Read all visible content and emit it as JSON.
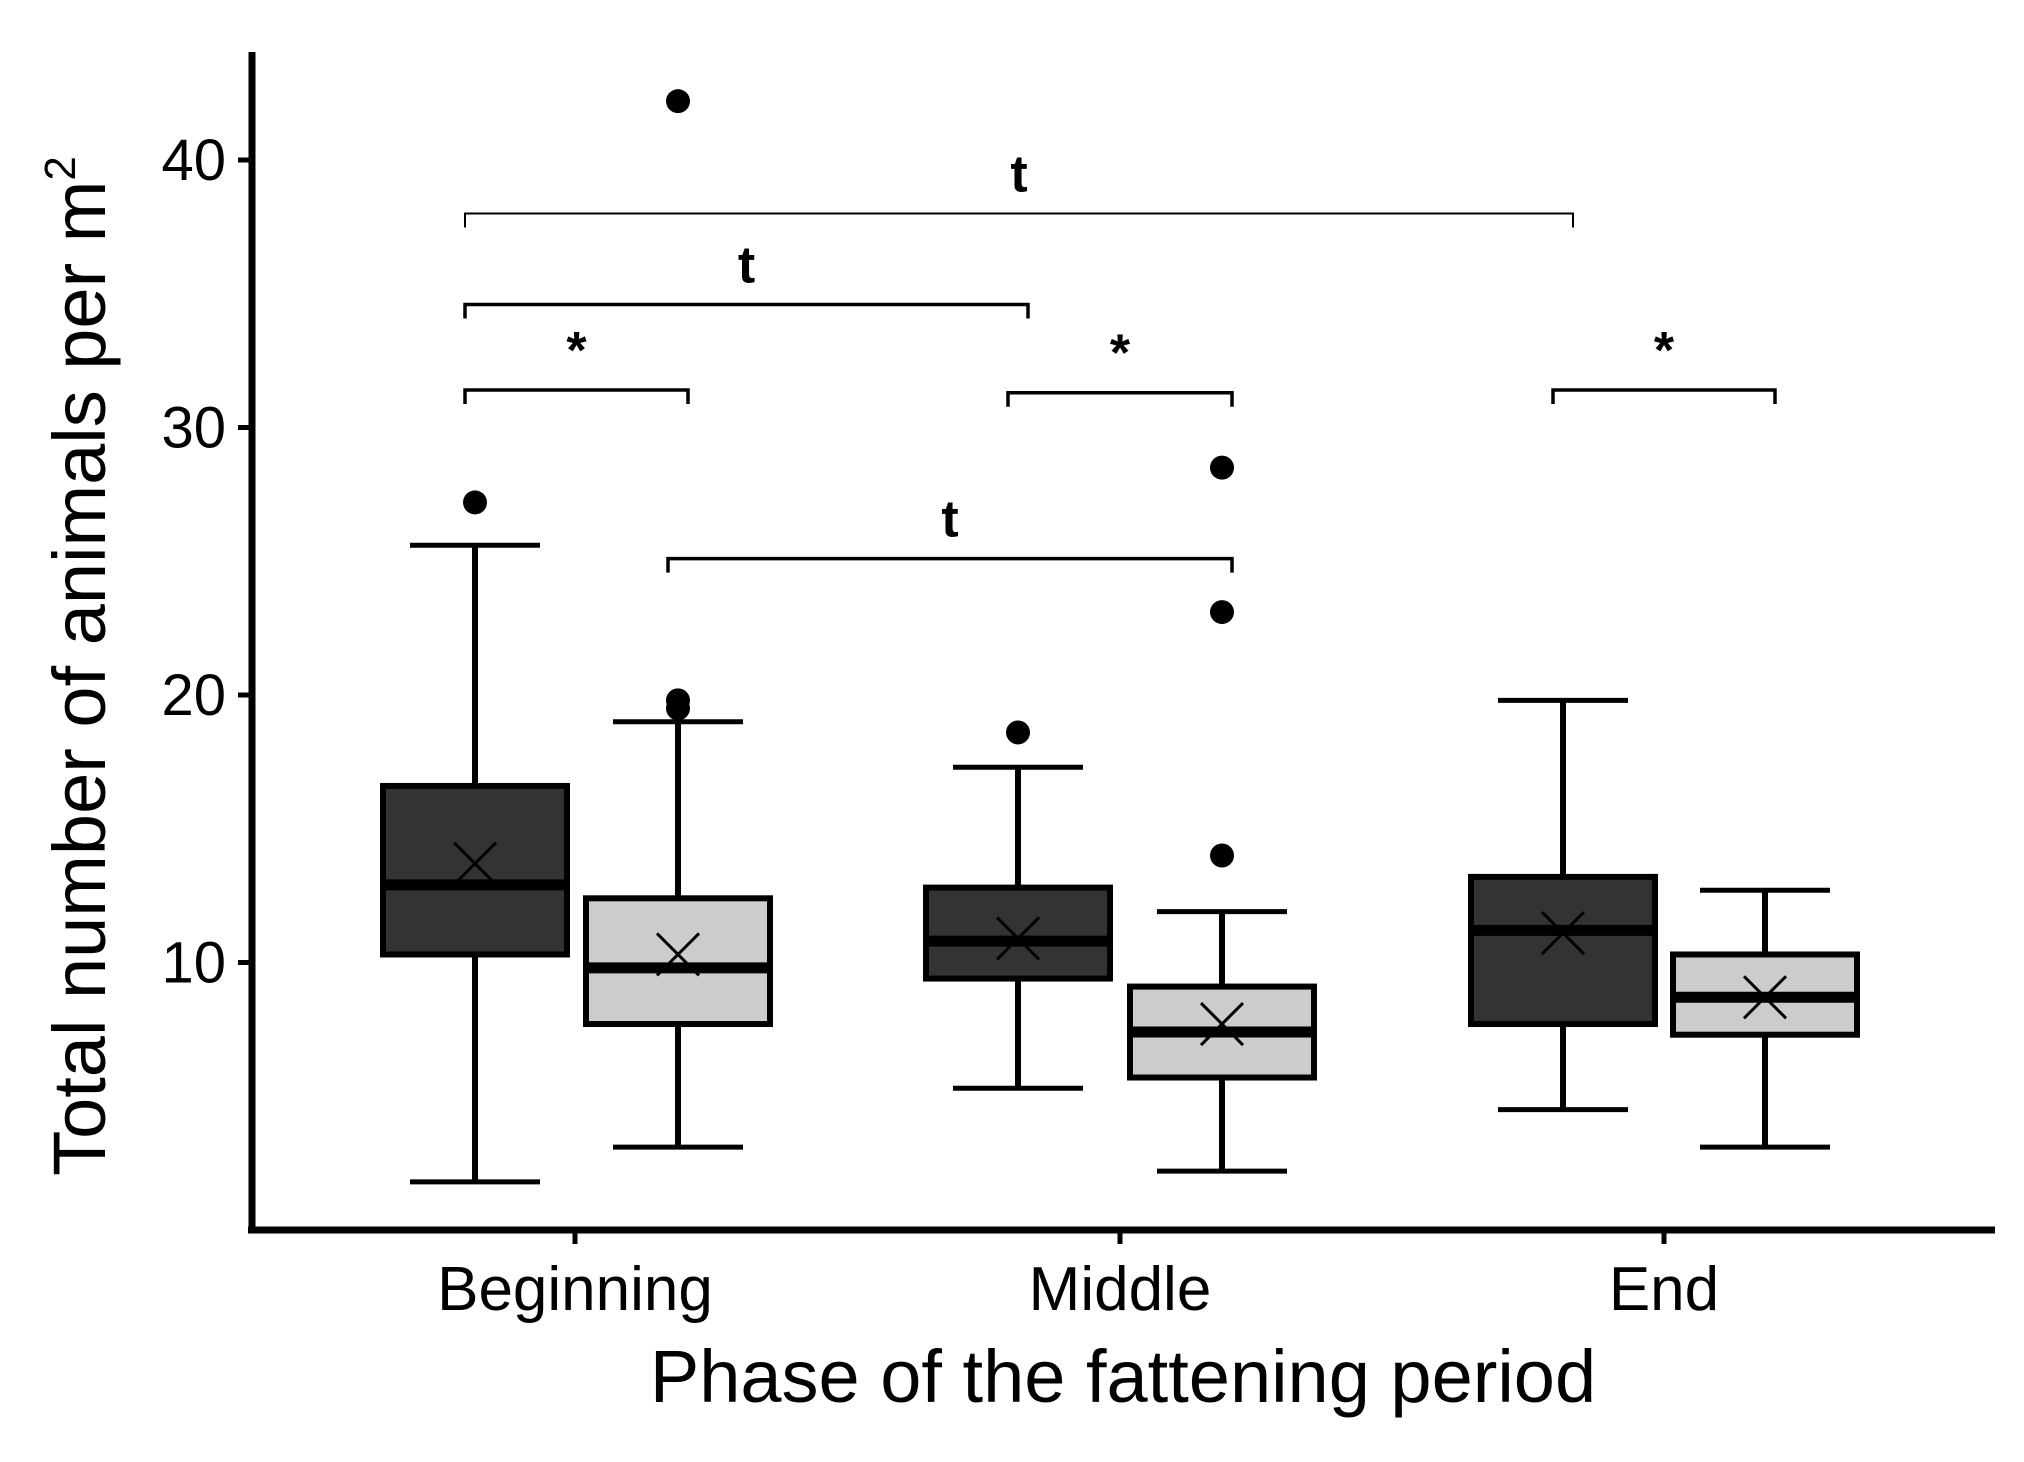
{
  "chart_data": {
    "type": "boxplot",
    "title": "",
    "xlabel": "Phase of the fattening period",
    "ylabel_main": "Total number of animals per m",
    "ylabel_superscript": "2",
    "ylim": [
      0,
      44
    ],
    "yticks": [
      10,
      20,
      30,
      40
    ],
    "categories": [
      "Beginning",
      "Middle",
      "End"
    ],
    "colors": {
      "dark": "#333333",
      "light": "#cccccc",
      "line": "#000000"
    },
    "groups": [
      {
        "category": "Beginning",
        "shade": "dark",
        "whisker_low": 1.8,
        "q1": 10.3,
        "median": 12.9,
        "q3": 16.6,
        "whisker_high": 25.6,
        "mean": 13.7,
        "outliers": [
          27.2
        ]
      },
      {
        "category": "Beginning",
        "shade": "light",
        "whisker_low": 3.1,
        "q1": 7.7,
        "median": 9.8,
        "q3": 12.4,
        "whisker_high": 19.0,
        "mean": 10.3,
        "outliers": [
          19.5,
          19.8,
          42.2
        ]
      },
      {
        "category": "Middle",
        "shade": "dark",
        "whisker_low": 5.3,
        "q1": 9.4,
        "median": 10.8,
        "q3": 12.8,
        "whisker_high": 17.3,
        "mean": 10.9,
        "outliers": [
          18.6
        ]
      },
      {
        "category": "Middle",
        "shade": "light",
        "whisker_low": 2.2,
        "q1": 5.7,
        "median": 7.4,
        "q3": 9.1,
        "whisker_high": 11.9,
        "mean": 7.7,
        "outliers": [
          14.0,
          23.1,
          28.5
        ]
      },
      {
        "category": "End",
        "shade": "dark",
        "whisker_low": 4.5,
        "q1": 7.7,
        "median": 11.2,
        "q3": 13.2,
        "whisker_high": 19.8,
        "mean": 11.1,
        "outliers": []
      },
      {
        "category": "End",
        "shade": "light",
        "whisker_low": 3.1,
        "q1": 7.3,
        "median": 8.7,
        "q3": 10.3,
        "whisker_high": 12.7,
        "mean": 8.7,
        "outliers": []
      }
    ],
    "significance": [
      {
        "from_group": 0,
        "to_group": 4,
        "level": 38.0,
        "label": "t"
      },
      {
        "from_group": 0,
        "to_group": 2,
        "level": 34.6,
        "label": "t"
      },
      {
        "from_group": 0,
        "to_group": 1,
        "level": 31.4,
        "label": "*"
      },
      {
        "from_group": 2,
        "to_group": 3,
        "level": 31.3,
        "label": "*"
      },
      {
        "from_group": 4,
        "to_group": 5,
        "level": 31.4,
        "label": "*"
      },
      {
        "from_group": 1,
        "to_group": 3,
        "level": 25.1,
        "label": "t"
      }
    ]
  }
}
